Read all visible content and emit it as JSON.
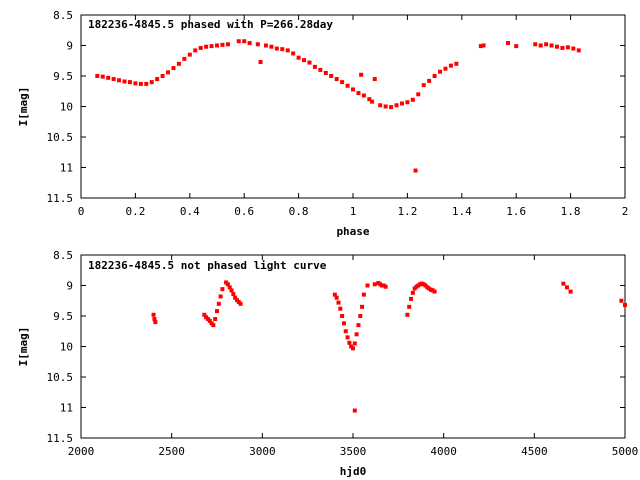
{
  "chart_data": [
    {
      "type": "scatter",
      "title": "182236-4845.5 phased with P=266.28day",
      "xlabel": "phase",
      "ylabel": "I[mag]",
      "xlim": [
        0,
        2
      ],
      "ylim": [
        8.5,
        11.5
      ],
      "y_inverted": true,
      "x_ticks": [
        "0",
        "0.2",
        "0.4",
        "0.6",
        "0.8",
        "1",
        "1.2",
        "1.4",
        "1.6",
        "1.8",
        "2"
      ],
      "y_ticks": [
        "8.5",
        "9",
        "9.5",
        "10",
        "10.5",
        "11",
        "11.5"
      ],
      "marker_color": "#ff0000",
      "grid": false,
      "legend": "none",
      "x": [
        0.06,
        0.08,
        0.1,
        0.12,
        0.14,
        0.16,
        0.18,
        0.2,
        0.22,
        0.24,
        0.26,
        0.28,
        0.3,
        0.32,
        0.34,
        0.36,
        0.38,
        0.4,
        0.42,
        0.44,
        0.46,
        0.48,
        0.5,
        0.52,
        0.54,
        0.58,
        0.6,
        0.62,
        0.65,
        0.66,
        0.68,
        0.7,
        0.72,
        0.74,
        0.76,
        0.78,
        0.8,
        0.82,
        0.84,
        0.86,
        0.88,
        0.9,
        0.92,
        0.94,
        0.96,
        0.98,
        1.0,
        1.02,
        1.03,
        1.04,
        1.06,
        1.07,
        1.08,
        1.1,
        1.12,
        1.14,
        1.16,
        1.18,
        1.2,
        1.22,
        1.23,
        1.24,
        1.26,
        1.28,
        1.3,
        1.32,
        1.34,
        1.36,
        1.38,
        1.47,
        1.48,
        1.57,
        1.6,
        1.67,
        1.69,
        1.71,
        1.73,
        1.75,
        1.77,
        1.79,
        1.81,
        1.83
      ],
      "y": [
        9.5,
        9.51,
        9.53,
        9.55,
        9.57,
        9.59,
        9.6,
        9.62,
        9.63,
        9.63,
        9.6,
        9.55,
        9.5,
        9.44,
        9.37,
        9.3,
        9.22,
        9.15,
        9.08,
        9.04,
        9.02,
        9.01,
        9.0,
        8.99,
        8.98,
        8.93,
        8.93,
        8.96,
        8.98,
        9.27,
        9.0,
        9.02,
        9.05,
        9.06,
        9.08,
        9.13,
        9.2,
        9.24,
        9.28,
        9.35,
        9.4,
        9.45,
        9.5,
        9.55,
        9.6,
        9.66,
        9.72,
        9.78,
        9.48,
        9.82,
        9.88,
        9.92,
        9.55,
        9.98,
        10.0,
        10.01,
        9.98,
        9.95,
        9.93,
        9.89,
        11.05,
        9.8,
        9.65,
        9.58,
        9.5,
        9.43,
        9.38,
        9.33,
        9.3,
        9.01,
        9.0,
        8.96,
        9.01,
        8.98,
        9.0,
        8.98,
        9.0,
        9.02,
        9.04,
        9.03,
        9.05,
        9.08
      ]
    },
    {
      "type": "scatter",
      "title": "182236-4845.5 not phased light curve",
      "xlabel": "hjd0",
      "ylabel": "I[mag]",
      "xlim": [
        2000,
        5000
      ],
      "ylim": [
        8.5,
        11.5
      ],
      "y_inverted": true,
      "x_ticks": [
        "2000",
        "2500",
        "3000",
        "3500",
        "4000",
        "4500",
        "5000"
      ],
      "y_ticks": [
        "8.5",
        "9",
        "9.5",
        "10",
        "10.5",
        "11",
        "11.5"
      ],
      "marker_color": "#ff0000",
      "grid": false,
      "legend": "none",
      "x": [
        2400,
        2405,
        2410,
        2680,
        2690,
        2700,
        2710,
        2720,
        2730,
        2740,
        2750,
        2760,
        2770,
        2780,
        2800,
        2810,
        2820,
        2830,
        2840,
        2850,
        2860,
        2870,
        2880,
        3400,
        3410,
        3420,
        3430,
        3440,
        3450,
        3460,
        3470,
        3480,
        3490,
        3500,
        3510,
        3520,
        3530,
        3540,
        3550,
        3560,
        3580,
        3620,
        3640,
        3650,
        3660,
        3670,
        3680,
        3800,
        3810,
        3820,
        3830,
        3840,
        3850,
        3860,
        3870,
        3880,
        3890,
        3900,
        3910,
        3920,
        3930,
        3940,
        3950,
        3510,
        4660,
        4680,
        4700,
        4980,
        5000
      ],
      "y": [
        9.48,
        9.55,
        9.6,
        9.48,
        9.52,
        9.55,
        9.58,
        9.62,
        9.65,
        9.55,
        9.42,
        9.3,
        9.18,
        9.06,
        8.95,
        8.98,
        9.03,
        9.08,
        9.14,
        9.2,
        9.24,
        9.27,
        9.3,
        9.15,
        9.2,
        9.28,
        9.38,
        9.5,
        9.62,
        9.75,
        9.85,
        9.94,
        10.0,
        10.03,
        9.95,
        9.8,
        9.65,
        9.5,
        9.35,
        9.15,
        9.0,
        8.98,
        8.96,
        8.98,
        9.0,
        9.0,
        9.02,
        9.48,
        9.35,
        9.22,
        9.12,
        9.05,
        9.02,
        9.0,
        8.98,
        8.97,
        8.98,
        9.0,
        9.03,
        9.05,
        9.07,
        9.08,
        9.1,
        11.05,
        8.97,
        9.03,
        9.1,
        9.25,
        9.32
      ]
    }
  ]
}
